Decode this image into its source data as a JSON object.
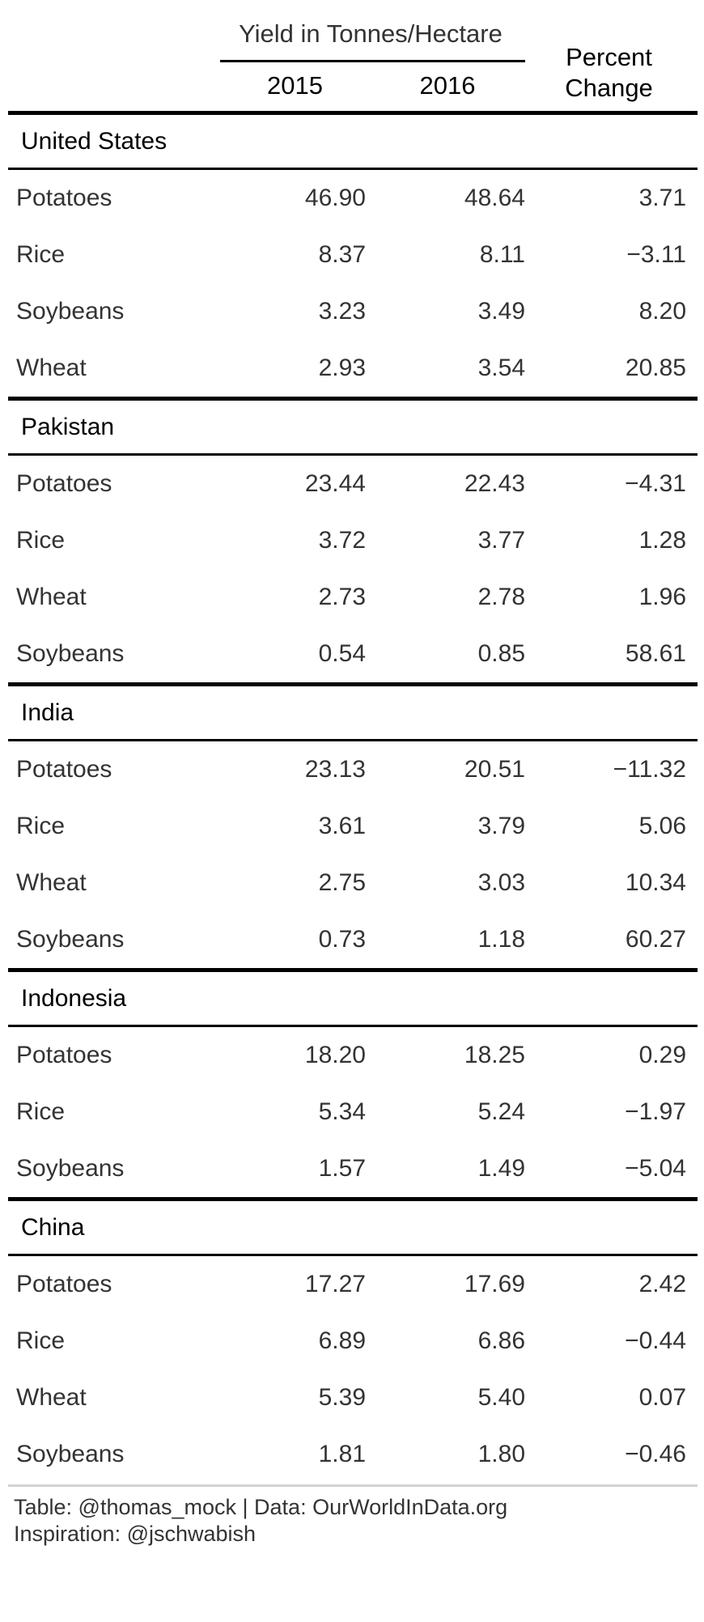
{
  "header": {
    "spanner": "Yield in Tonnes/Hectare",
    "col_2015": "2015",
    "col_2016": "2016",
    "col_pct": "Percent Change"
  },
  "groups": [
    {
      "name": "United States",
      "rows": [
        {
          "crop": "Potatoes",
          "y2015": "46.90",
          "y2016": "48.64",
          "pct": "3.71"
        },
        {
          "crop": "Rice",
          "y2015": "8.37",
          "y2016": "8.11",
          "pct": "−3.11"
        },
        {
          "crop": "Soybeans",
          "y2015": "3.23",
          "y2016": "3.49",
          "pct": "8.20"
        },
        {
          "crop": "Wheat",
          "y2015": "2.93",
          "y2016": "3.54",
          "pct": "20.85"
        }
      ]
    },
    {
      "name": "Pakistan",
      "rows": [
        {
          "crop": "Potatoes",
          "y2015": "23.44",
          "y2016": "22.43",
          "pct": "−4.31"
        },
        {
          "crop": "Rice",
          "y2015": "3.72",
          "y2016": "3.77",
          "pct": "1.28"
        },
        {
          "crop": "Wheat",
          "y2015": "2.73",
          "y2016": "2.78",
          "pct": "1.96"
        },
        {
          "crop": "Soybeans",
          "y2015": "0.54",
          "y2016": "0.85",
          "pct": "58.61"
        }
      ]
    },
    {
      "name": "India",
      "rows": [
        {
          "crop": "Potatoes",
          "y2015": "23.13",
          "y2016": "20.51",
          "pct": "−11.32"
        },
        {
          "crop": "Rice",
          "y2015": "3.61",
          "y2016": "3.79",
          "pct": "5.06"
        },
        {
          "crop": "Wheat",
          "y2015": "2.75",
          "y2016": "3.03",
          "pct": "10.34"
        },
        {
          "crop": "Soybeans",
          "y2015": "0.73",
          "y2016": "1.18",
          "pct": "60.27"
        }
      ]
    },
    {
      "name": "Indonesia",
      "rows": [
        {
          "crop": "Potatoes",
          "y2015": "18.20",
          "y2016": "18.25",
          "pct": "0.29"
        },
        {
          "crop": "Rice",
          "y2015": "5.34",
          "y2016": "5.24",
          "pct": "−1.97"
        },
        {
          "crop": "Soybeans",
          "y2015": "1.57",
          "y2016": "1.49",
          "pct": "−5.04"
        }
      ]
    },
    {
      "name": "China",
      "rows": [
        {
          "crop": "Potatoes",
          "y2015": "17.27",
          "y2016": "17.69",
          "pct": "2.42"
        },
        {
          "crop": "Rice",
          "y2015": "6.89",
          "y2016": "6.86",
          "pct": "−0.44"
        },
        {
          "crop": "Wheat",
          "y2015": "5.39",
          "y2016": "5.40",
          "pct": "0.07"
        },
        {
          "crop": "Soybeans",
          "y2015": "1.81",
          "y2016": "1.80",
          "pct": "−0.46"
        }
      ]
    }
  ],
  "footer": {
    "source_line1": "Table: @thomas_mock | Data: OurWorldInData.org",
    "source_line2": "Inspiration: @jschwabish"
  }
}
